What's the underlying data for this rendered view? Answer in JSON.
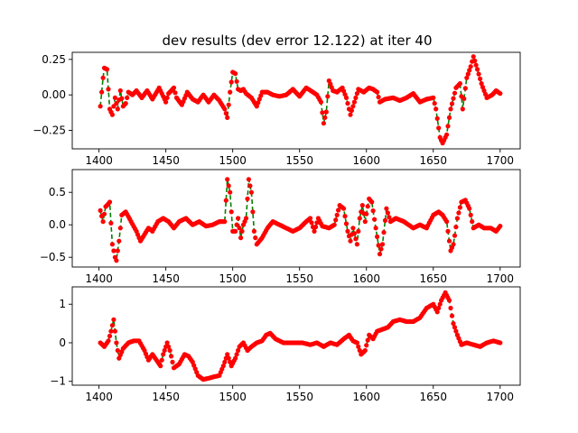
{
  "figure": {
    "title": "dev results (dev error 12.122) at iter 40"
  },
  "colors": {
    "prediction": "#008000",
    "truth": "#ff0000"
  },
  "chart_data": [
    {
      "type": "line",
      "xlim": [
        1380,
        1715
      ],
      "ylim": [
        -0.38,
        0.3
      ],
      "xticks": [
        1400,
        1450,
        1500,
        1550,
        1600,
        1650,
        1700
      ],
      "xtick_labels": [
        "1400",
        "1450",
        "1500",
        "1550",
        "1600",
        "1650",
        "1700"
      ],
      "yticks": [
        -0.25,
        0.0,
        0.25
      ],
      "ytick_labels": [
        "−0.25",
        "0.00",
        "0.25"
      ],
      "x_range": [
        1401,
        1700
      ],
      "anchors": [
        [
          1401,
          -0.08
        ],
        [
          1403,
          0.12
        ],
        [
          1404,
          0.19
        ],
        [
          1406,
          0.18
        ],
        [
          1408,
          -0.1
        ],
        [
          1410,
          -0.14
        ],
        [
          1412,
          -0.02
        ],
        [
          1414,
          -0.1
        ],
        [
          1416,
          0.03
        ],
        [
          1418,
          -0.08
        ],
        [
          1420,
          -0.06
        ],
        [
          1422,
          0.02
        ],
        [
          1425,
          0.0
        ],
        [
          1428,
          0.03
        ],
        [
          1432,
          -0.02
        ],
        [
          1436,
          0.03
        ],
        [
          1440,
          -0.03
        ],
        [
          1445,
          0.05
        ],
        [
          1450,
          -0.05
        ],
        [
          1452,
          0.01
        ],
        [
          1456,
          0.05
        ],
        [
          1458,
          -0.02
        ],
        [
          1462,
          -0.07
        ],
        [
          1466,
          0.02
        ],
        [
          1470,
          -0.03
        ],
        [
          1474,
          -0.05
        ],
        [
          1478,
          0.0
        ],
        [
          1482,
          -0.05
        ],
        [
          1486,
          0.0
        ],
        [
          1490,
          -0.04
        ],
        [
          1494,
          -0.1
        ],
        [
          1496,
          -0.16
        ],
        [
          1498,
          0.02
        ],
        [
          1500,
          0.16
        ],
        [
          1502,
          0.15
        ],
        [
          1504,
          0.04
        ],
        [
          1506,
          0.03
        ],
        [
          1508,
          0.04
        ],
        [
          1510,
          0.01
        ],
        [
          1514,
          -0.02
        ],
        [
          1518,
          -0.08
        ],
        [
          1522,
          0.02
        ],
        [
          1526,
          0.02
        ],
        [
          1530,
          0.0
        ],
        [
          1535,
          -0.01
        ],
        [
          1540,
          0.0
        ],
        [
          1545,
          0.04
        ],
        [
          1550,
          -0.01
        ],
        [
          1555,
          0.05
        ],
        [
          1560,
          0.02
        ],
        [
          1563,
          0.0
        ],
        [
          1566,
          -0.05
        ],
        [
          1568,
          -0.2
        ],
        [
          1570,
          -0.12
        ],
        [
          1572,
          0.1
        ],
        [
          1575,
          0.03
        ],
        [
          1578,
          0.02
        ],
        [
          1582,
          0.05
        ],
        [
          1585,
          -0.02
        ],
        [
          1588,
          -0.14
        ],
        [
          1590,
          -0.08
        ],
        [
          1594,
          0.04
        ],
        [
          1598,
          0.02
        ],
        [
          1602,
          0.05
        ],
        [
          1605,
          0.04
        ],
        [
          1608,
          0.02
        ],
        [
          1610,
          -0.05
        ],
        [
          1614,
          -0.03
        ],
        [
          1620,
          -0.02
        ],
        [
          1625,
          -0.04
        ],
        [
          1630,
          -0.02
        ],
        [
          1635,
          0.01
        ],
        [
          1640,
          -0.05
        ],
        [
          1645,
          -0.03
        ],
        [
          1650,
          -0.02
        ],
        [
          1652,
          -0.1
        ],
        [
          1655,
          -0.3
        ],
        [
          1657,
          -0.34
        ],
        [
          1660,
          -0.28
        ],
        [
          1663,
          -0.1
        ],
        [
          1667,
          0.05
        ],
        [
          1670,
          0.08
        ],
        [
          1672,
          -0.1
        ],
        [
          1675,
          0.12
        ],
        [
          1678,
          0.2
        ],
        [
          1680,
          0.27
        ],
        [
          1683,
          0.18
        ],
        [
          1686,
          0.08
        ],
        [
          1690,
          -0.02
        ],
        [
          1694,
          0.0
        ],
        [
          1697,
          0.03
        ],
        [
          1700,
          0.01
        ]
      ]
    },
    {
      "type": "line",
      "xlim": [
        1380,
        1715
      ],
      "ylim": [
        -0.65,
        0.85
      ],
      "xticks": [
        1400,
        1450,
        1500,
        1550,
        1600,
        1650,
        1700
      ],
      "xtick_labels": [
        "1400",
        "1450",
        "1500",
        "1550",
        "1600",
        "1650",
        "1700"
      ],
      "yticks": [
        -0.5,
        0.0,
        0.5
      ],
      "ytick_labels": [
        "−0.5",
        "0.0",
        "0.5"
      ],
      "x_range": [
        1401,
        1700
      ],
      "anchors": [
        [
          1401,
          0.22
        ],
        [
          1403,
          0.05
        ],
        [
          1405,
          0.28
        ],
        [
          1406,
          0.3
        ],
        [
          1408,
          0.35
        ],
        [
          1410,
          -0.3
        ],
        [
          1412,
          -0.5
        ],
        [
          1413,
          -0.55
        ],
        [
          1415,
          -0.25
        ],
        [
          1417,
          0.15
        ],
        [
          1420,
          0.2
        ],
        [
          1424,
          0.05
        ],
        [
          1428,
          -0.1
        ],
        [
          1431,
          -0.25
        ],
        [
          1434,
          -0.15
        ],
        [
          1437,
          -0.05
        ],
        [
          1440,
          -0.1
        ],
        [
          1444,
          0.05
        ],
        [
          1448,
          0.1
        ],
        [
          1452,
          0.05
        ],
        [
          1456,
          -0.05
        ],
        [
          1460,
          0.05
        ],
        [
          1465,
          0.1
        ],
        [
          1470,
          0.0
        ],
        [
          1475,
          0.05
        ],
        [
          1480,
          -0.02
        ],
        [
          1485,
          0.0
        ],
        [
          1490,
          0.05
        ],
        [
          1494,
          0.05
        ],
        [
          1496,
          0.7
        ],
        [
          1498,
          0.5
        ],
        [
          1500,
          -0.1
        ],
        [
          1502,
          -0.1
        ],
        [
          1504,
          0.1
        ],
        [
          1506,
          -0.2
        ],
        [
          1508,
          0.0
        ],
        [
          1510,
          0.1
        ],
        [
          1512,
          0.7
        ],
        [
          1514,
          0.5
        ],
        [
          1516,
          -0.1
        ],
        [
          1518,
          -0.3
        ],
        [
          1522,
          -0.2
        ],
        [
          1526,
          -0.05
        ],
        [
          1530,
          0.05
        ],
        [
          1535,
          0.0
        ],
        [
          1540,
          -0.05
        ],
        [
          1545,
          -0.1
        ],
        [
          1550,
          -0.05
        ],
        [
          1555,
          0.05
        ],
        [
          1558,
          0.1
        ],
        [
          1561,
          -0.1
        ],
        [
          1564,
          0.1
        ],
        [
          1567,
          -0.02
        ],
        [
          1572,
          -0.05
        ],
        [
          1576,
          0.0
        ],
        [
          1580,
          0.3
        ],
        [
          1583,
          0.25
        ],
        [
          1586,
          -0.1
        ],
        [
          1588,
          -0.25
        ],
        [
          1590,
          -0.05
        ],
        [
          1593,
          -0.3
        ],
        [
          1595,
          0.1
        ],
        [
          1597,
          0.3
        ],
        [
          1599,
          0.05
        ],
        [
          1602,
          0.4
        ],
        [
          1604,
          0.35
        ],
        [
          1607,
          -0.05
        ],
        [
          1610,
          -0.45
        ],
        [
          1612,
          -0.3
        ],
        [
          1615,
          0.25
        ],
        [
          1618,
          0.05
        ],
        [
          1622,
          0.1
        ],
        [
          1628,
          0.05
        ],
        [
          1635,
          -0.05
        ],
        [
          1640,
          0.0
        ],
        [
          1645,
          -0.05
        ],
        [
          1650,
          0.15
        ],
        [
          1654,
          0.2
        ],
        [
          1657,
          0.15
        ],
        [
          1660,
          0.05
        ],
        [
          1663,
          -0.4
        ],
        [
          1665,
          -0.3
        ],
        [
          1668,
          0.1
        ],
        [
          1671,
          0.35
        ],
        [
          1674,
          0.38
        ],
        [
          1677,
          0.25
        ],
        [
          1680,
          -0.05
        ],
        [
          1684,
          0.0
        ],
        [
          1688,
          -0.05
        ],
        [
          1693,
          -0.05
        ],
        [
          1697,
          -0.1
        ],
        [
          1700,
          -0.02
        ]
      ]
    },
    {
      "type": "line",
      "xlim": [
        1380,
        1715
      ],
      "ylim": [
        -1.1,
        1.45
      ],
      "xticks": [
        1400,
        1450,
        1500,
        1550,
        1600,
        1650,
        1700
      ],
      "xtick_labels": [
        "1400",
        "1450",
        "1500",
        "1550",
        "1600",
        "1650",
        "1700"
      ],
      "yticks": [
        -1,
        0,
        1
      ],
      "ytick_labels": [
        "−1",
        "0",
        "1"
      ],
      "x_range": [
        1401,
        1700
      ],
      "anchors": [
        [
          1401,
          0.0
        ],
        [
          1404,
          -0.1
        ],
        [
          1407,
          0.05
        ],
        [
          1409,
          0.3
        ],
        [
          1411,
          0.6
        ],
        [
          1413,
          0.0
        ],
        [
          1415,
          -0.4
        ],
        [
          1418,
          -0.15
        ],
        [
          1422,
          0.0
        ],
        [
          1426,
          0.05
        ],
        [
          1430,
          0.05
        ],
        [
          1434,
          -0.2
        ],
        [
          1437,
          -0.45
        ],
        [
          1440,
          -0.3
        ],
        [
          1443,
          -0.45
        ],
        [
          1446,
          -0.6
        ],
        [
          1448,
          -0.3
        ],
        [
          1451,
          0.0
        ],
        [
          1453,
          -0.2
        ],
        [
          1456,
          -0.65
        ],
        [
          1460,
          -0.55
        ],
        [
          1464,
          -0.3
        ],
        [
          1467,
          -0.35
        ],
        [
          1470,
          -0.5
        ],
        [
          1474,
          -0.85
        ],
        [
          1478,
          -0.95
        ],
        [
          1482,
          -0.92
        ],
        [
          1486,
          -0.88
        ],
        [
          1490,
          -0.85
        ],
        [
          1493,
          -0.6
        ],
        [
          1496,
          -0.3
        ],
        [
          1499,
          -0.6
        ],
        [
          1502,
          -0.4
        ],
        [
          1505,
          -0.1
        ],
        [
          1508,
          0.0
        ],
        [
          1511,
          -0.2
        ],
        [
          1514,
          -0.1
        ],
        [
          1518,
          0.0
        ],
        [
          1522,
          0.05
        ],
        [
          1525,
          0.2
        ],
        [
          1528,
          0.25
        ],
        [
          1532,
          0.1
        ],
        [
          1538,
          0.0
        ],
        [
          1545,
          0.0
        ],
        [
          1552,
          0.0
        ],
        [
          1558,
          -0.05
        ],
        [
          1563,
          0.0
        ],
        [
          1568,
          -0.1
        ],
        [
          1573,
          0.0
        ],
        [
          1578,
          -0.05
        ],
        [
          1583,
          0.1
        ],
        [
          1587,
          0.2
        ],
        [
          1590,
          0.05
        ],
        [
          1593,
          0.0
        ],
        [
          1596,
          -0.3
        ],
        [
          1599,
          -0.2
        ],
        [
          1602,
          0.2
        ],
        [
          1605,
          0.1
        ],
        [
          1608,
          0.3
        ],
        [
          1612,
          0.35
        ],
        [
          1616,
          0.4
        ],
        [
          1620,
          0.55
        ],
        [
          1625,
          0.6
        ],
        [
          1630,
          0.55
        ],
        [
          1635,
          0.55
        ],
        [
          1640,
          0.65
        ],
        [
          1645,
          0.9
        ],
        [
          1650,
          1.0
        ],
        [
          1653,
          0.8
        ],
        [
          1656,
          1.1
        ],
        [
          1659,
          1.3
        ],
        [
          1662,
          1.1
        ],
        [
          1665,
          0.5
        ],
        [
          1668,
          0.2
        ],
        [
          1671,
          -0.05
        ],
        [
          1675,
          0.0
        ],
        [
          1680,
          -0.05
        ],
        [
          1685,
          -0.1
        ],
        [
          1690,
          0.0
        ],
        [
          1695,
          0.05
        ],
        [
          1700,
          0.0
        ]
      ]
    }
  ]
}
